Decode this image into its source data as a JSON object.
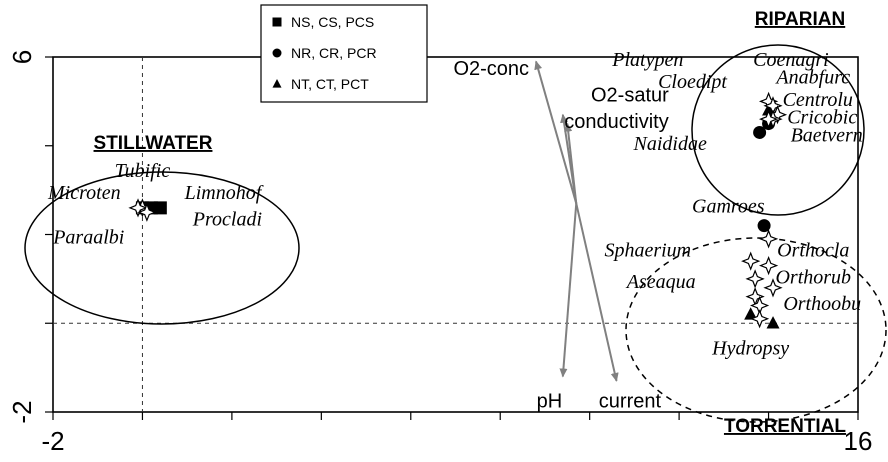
{
  "chart_data": {
    "type": "scatter",
    "xlim": [
      -2,
      16
    ],
    "ylim": [
      -2,
      6
    ],
    "x_tick_labels": [
      "-2",
      "16"
    ],
    "y_tick_labels": [
      "6",
      "-2"
    ],
    "reference_lines": {
      "x": 0,
      "y": 0
    },
    "legend": {
      "position": "top-center",
      "entries": [
        {
          "marker": "square",
          "label": "NS, CS, PCS"
        },
        {
          "marker": "circle",
          "label": "NR, CR, PCR"
        },
        {
          "marker": "triangle",
          "label": "NT, CT, PCT"
        }
      ]
    },
    "groups": [
      {
        "key": "stillwater",
        "label": "STILLWATER",
        "ellipse": "solid"
      },
      {
        "key": "riparian",
        "label": "RIPARIAN",
        "ellipse": "solid"
      },
      {
        "key": "torrential",
        "label": "TORRENTIAL",
        "ellipse": "dashed"
      }
    ],
    "sample_points": [
      {
        "marker": "square",
        "x": 0.0,
        "y": 2.6
      },
      {
        "marker": "square",
        "x": 0.2,
        "y": 2.6
      },
      {
        "marker": "square",
        "x": 0.4,
        "y": 2.6
      },
      {
        "marker": "circle",
        "x": 13.8,
        "y": 4.3
      },
      {
        "marker": "circle",
        "x": 14.0,
        "y": 4.5
      },
      {
        "marker": "triangle",
        "x": 14.0,
        "y": 4.8
      },
      {
        "marker": "circle",
        "x": 13.9,
        "y": 2.2
      },
      {
        "marker": "triangle",
        "x": 13.6,
        "y": 0.2
      },
      {
        "marker": "triangle",
        "x": 14.1,
        "y": 0.0
      }
    ],
    "species_points": [
      {
        "x": 0.0,
        "y": 2.6
      },
      {
        "x": -0.1,
        "y": 2.6
      },
      {
        "x": 0.1,
        "y": 2.5
      },
      {
        "x": 14.0,
        "y": 5.0
      },
      {
        "x": 14.1,
        "y": 4.9
      },
      {
        "x": 14.2,
        "y": 4.7
      },
      {
        "x": 14.1,
        "y": 4.6
      },
      {
        "x": 14.0,
        "y": 4.6
      },
      {
        "x": 14.0,
        "y": 1.9
      },
      {
        "x": 13.6,
        "y": 1.4
      },
      {
        "x": 14.0,
        "y": 1.3
      },
      {
        "x": 13.7,
        "y": 1.0
      },
      {
        "x": 14.1,
        "y": 0.8
      },
      {
        "x": 13.7,
        "y": 0.6
      },
      {
        "x": 13.8,
        "y": 0.4
      },
      {
        "x": 13.8,
        "y": 0.1
      }
    ],
    "species_labels": [
      {
        "text": "Tubific",
        "x": 0.0,
        "y": 3.3
      },
      {
        "text": "Microten",
        "x": -1.3,
        "y": 2.8
      },
      {
        "text": "Limnohof",
        "x": 1.8,
        "y": 2.8
      },
      {
        "text": "Procladi",
        "x": 1.9,
        "y": 2.2
      },
      {
        "text": "Paraalbi",
        "x": -1.2,
        "y": 1.8
      },
      {
        "text": "Platypen",
        "x": 11.3,
        "y": 5.8
      },
      {
        "text": "Coenagri",
        "x": 14.5,
        "y": 5.8
      },
      {
        "text": "Anabfurc",
        "x": 15.0,
        "y": 5.4
      },
      {
        "text": "Cloedipt",
        "x": 12.3,
        "y": 5.3
      },
      {
        "text": "Centrolu",
        "x": 15.1,
        "y": 4.9
      },
      {
        "text": "Cricobic",
        "x": 15.2,
        "y": 4.5
      },
      {
        "text": "Baetvern",
        "x": 15.3,
        "y": 4.1
      },
      {
        "text": "Naididae",
        "x": 11.8,
        "y": 3.9
      },
      {
        "text": "Gamroes",
        "x": 13.1,
        "y": 2.5
      },
      {
        "text": "Sphaerium",
        "x": 11.3,
        "y": 1.5
      },
      {
        "text": "Orthocla",
        "x": 15.0,
        "y": 1.5
      },
      {
        "text": "Orthorub",
        "x": 15.0,
        "y": 0.9
      },
      {
        "text": "Aseaqua",
        "x": 11.6,
        "y": 0.8
      },
      {
        "text": "Orthoobu",
        "x": 15.2,
        "y": 0.3
      },
      {
        "text": "Hydropsy",
        "x": 13.6,
        "y": -0.7
      }
    ],
    "vectors": {
      "origin": {
        "x": 9.7,
        "y": 2.7
      },
      "items": [
        {
          "label": "O2-conc",
          "x": 8.8,
          "y": 5.9
        },
        {
          "label": "O2-satur",
          "x": 9.4,
          "y": 4.7
        },
        {
          "label": "conductivity",
          "x": 9.5,
          "y": 4.5
        },
        {
          "label": "pH",
          "x": 9.4,
          "y": -1.2
        },
        {
          "label": "current",
          "x": 10.6,
          "y": -1.3
        }
      ],
      "label_positions": [
        {
          "x": 7.8,
          "y": 5.6
        },
        {
          "x": 10.9,
          "y": 5.0
        },
        {
          "x": 10.6,
          "y": 4.4
        },
        {
          "x": 9.1,
          "y": -1.9
        },
        {
          "x": 10.9,
          "y": -1.9
        }
      ]
    },
    "colors": {
      "vectors": "#808080",
      "axes": "#000000",
      "symbols": "#000000",
      "star_fill": "#ffffff"
    }
  }
}
